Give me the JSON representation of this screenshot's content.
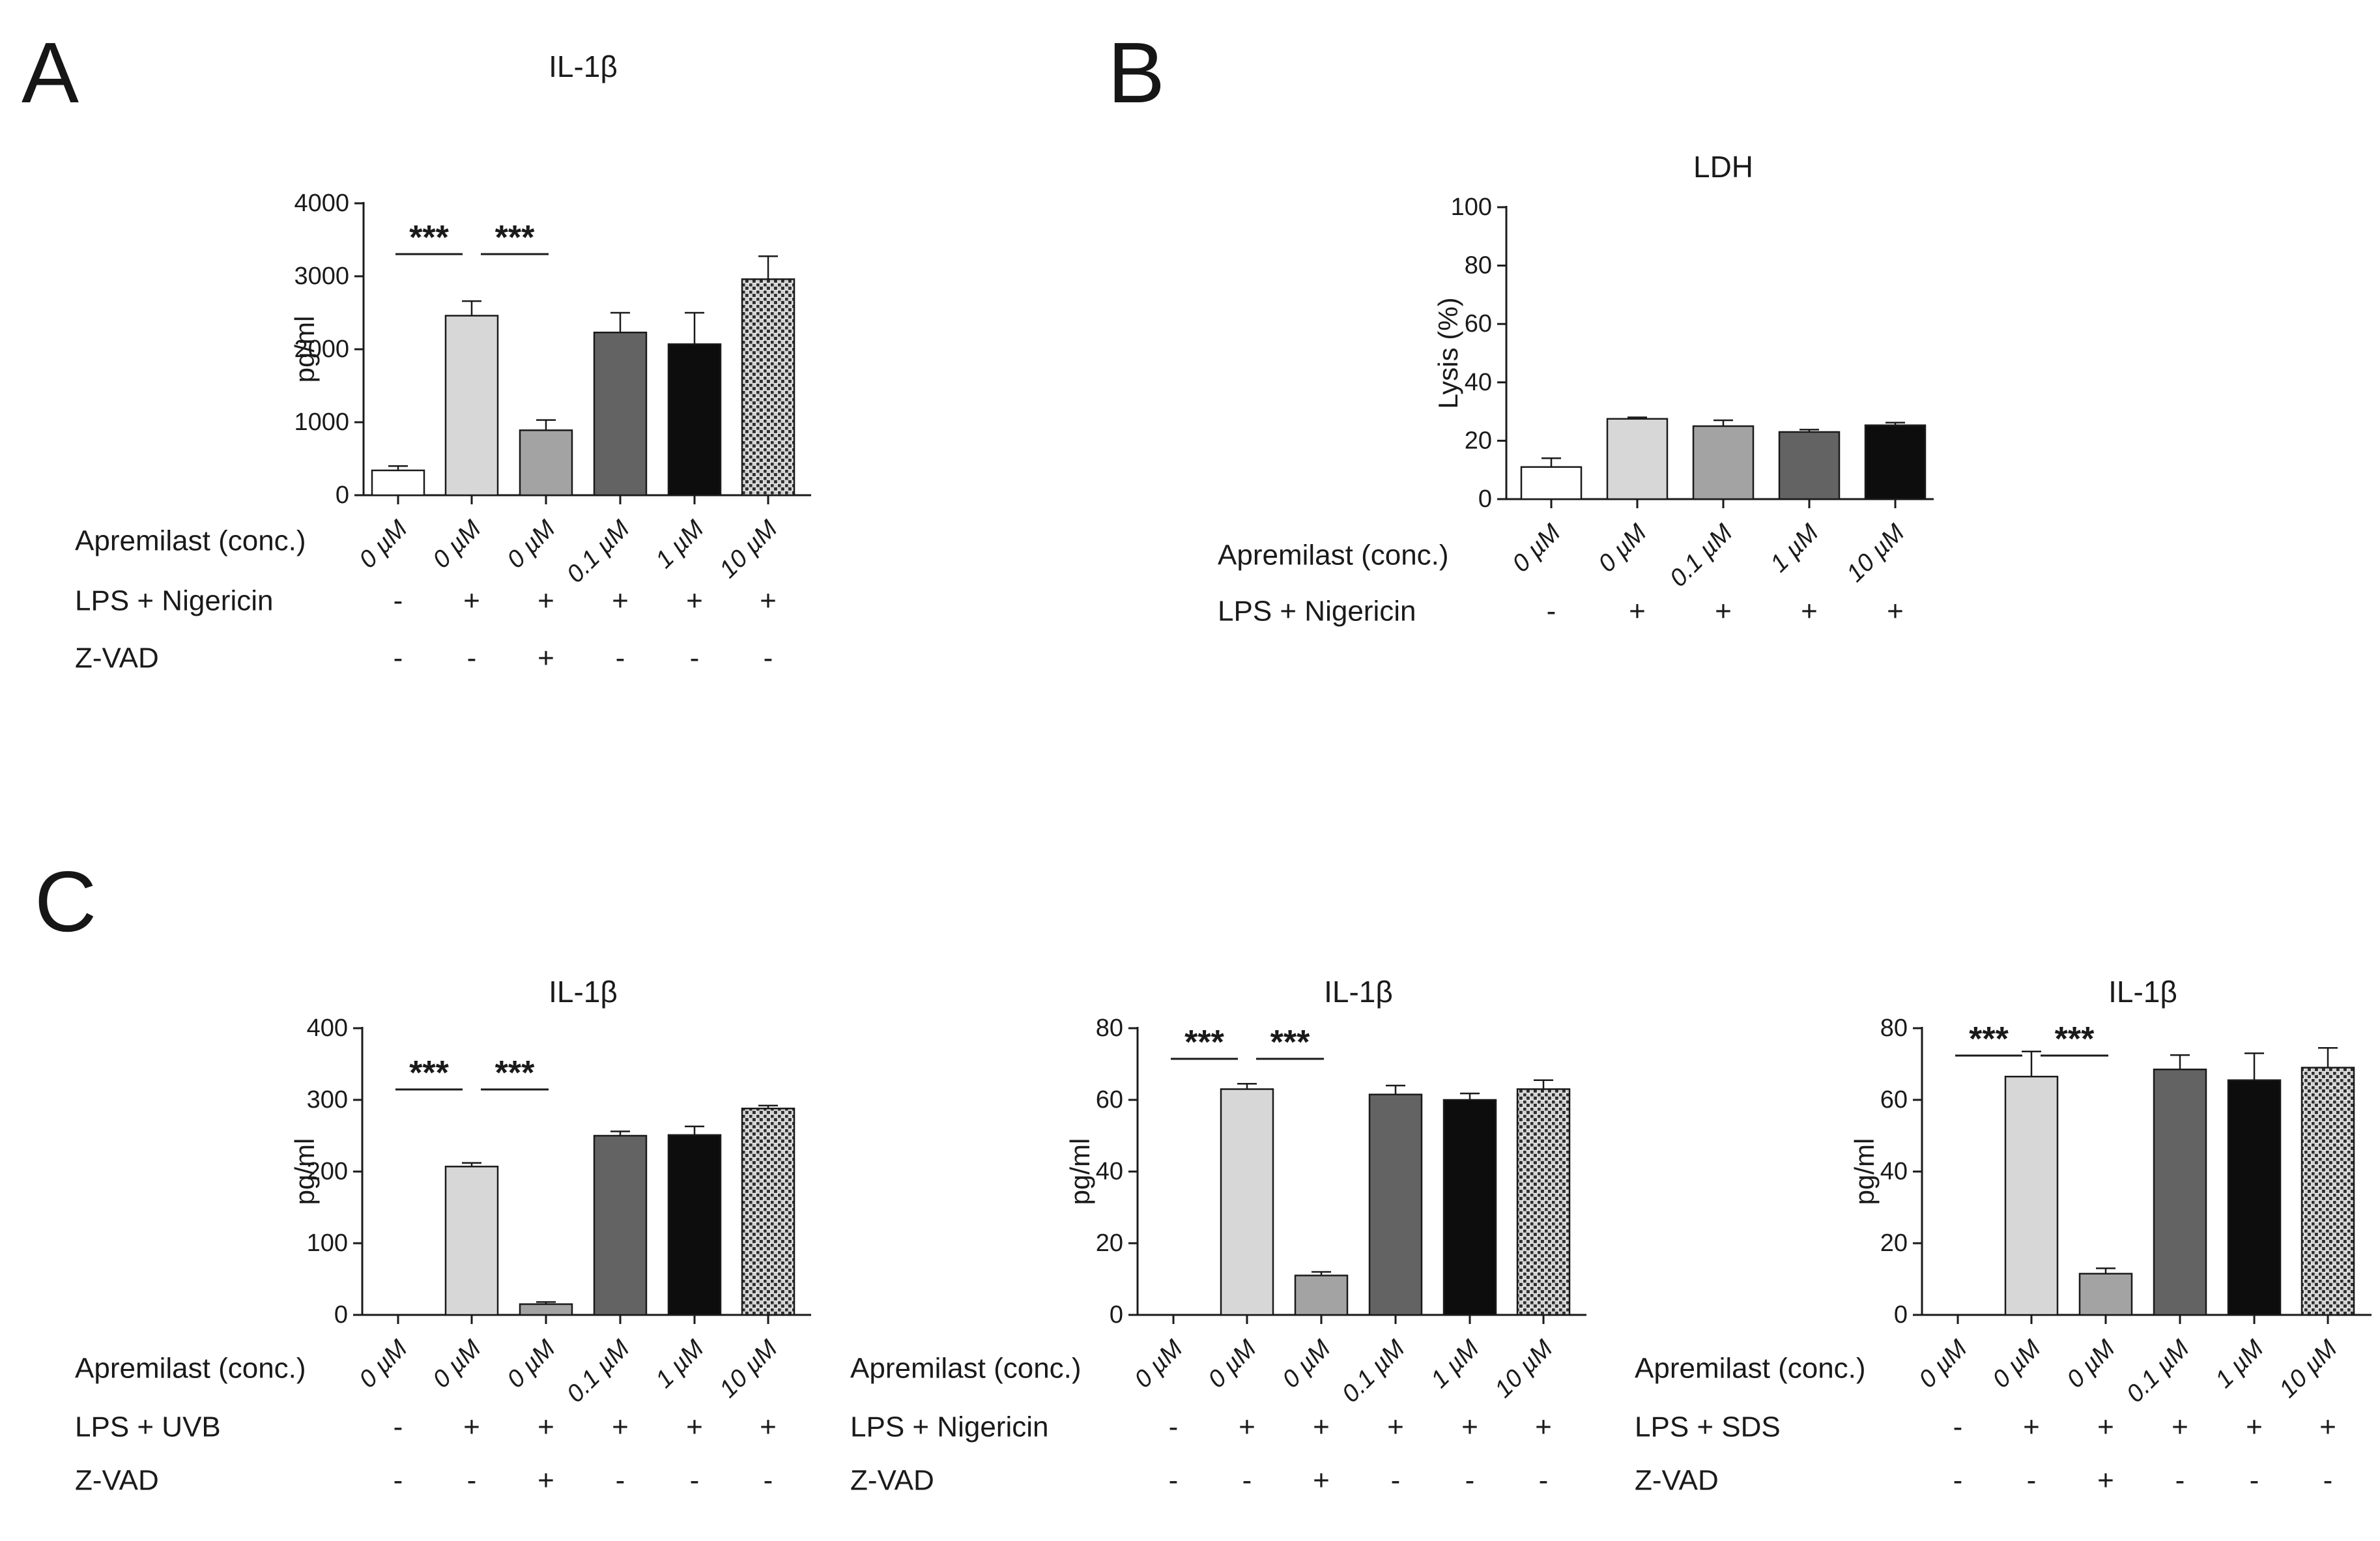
{
  "figure": {
    "background": "#ffffff",
    "ink": "#1a1a1a"
  },
  "panels": [
    {
      "id": "A",
      "letter": "A"
    },
    {
      "id": "B",
      "letter": "B"
    },
    {
      "id": "C",
      "letter": "C"
    }
  ],
  "colors": {
    "white": "#ffffff",
    "lightgray": "#d7d7d7",
    "midgray": "#a3a3a3",
    "darkgray": "#636363",
    "black": "#0d0d0d",
    "checker_dark": "#2e2e2e",
    "checker_light": "#d2d2d2",
    "checker_line": "#f2f2f2"
  },
  "chart_data": [
    {
      "id": "A",
      "panel": "A",
      "type": "bar",
      "title": "IL-1β",
      "ylabel": "pg/ml",
      "ylim": [
        0,
        4000
      ],
      "ytick_step": 1000,
      "grid": false,
      "legend_position": "none",
      "categories": [
        "0 µM",
        "0 µM",
        "0 µM",
        "0.1 µM",
        "1 µM",
        "10 µM"
      ],
      "values": [
        340,
        2460,
        890,
        2230,
        2070,
        2960
      ],
      "errors_plus": [
        60,
        200,
        140,
        270,
        430,
        315
      ],
      "bar_styles": [
        "white",
        "lightgray",
        "midgray",
        "darkgray",
        "black",
        "checker"
      ],
      "significance": [
        {
          "between": [
            0,
            1
          ],
          "label": "***"
        },
        {
          "between": [
            1,
            2
          ],
          "label": "***"
        }
      ],
      "condition_rows": [
        {
          "label": "Apremilast (conc.)",
          "symbols": null
        },
        {
          "label": "LPS + Nigericin",
          "symbols": [
            "-",
            "+",
            "+",
            "+",
            "+",
            "+"
          ]
        },
        {
          "label": "Z-VAD",
          "symbols": [
            "-",
            "-",
            "+",
            "-",
            "-",
            "-"
          ]
        }
      ]
    },
    {
      "id": "B",
      "panel": "B",
      "type": "bar",
      "title": "LDH",
      "ylabel": "Lysis (%)",
      "ylim": [
        0,
        100
      ],
      "ytick_step": 20,
      "grid": false,
      "legend_position": "none",
      "categories": [
        "0 µM",
        "0 µM",
        "0.1 µM",
        "1 µM",
        "10 µM"
      ],
      "values": [
        11,
        27.5,
        25,
        23,
        25.3
      ],
      "errors_plus": [
        3,
        0.5,
        2,
        0.8,
        0.9
      ],
      "bar_styles": [
        "white",
        "lightgray",
        "midgray",
        "darkgray",
        "black"
      ],
      "significance": [],
      "condition_rows": [
        {
          "label": "Apremilast (conc.)",
          "symbols": null
        },
        {
          "label": "LPS + Nigericin",
          "symbols": [
            "-",
            "+",
            "+",
            "+",
            "+"
          ]
        }
      ]
    },
    {
      "id": "C1",
      "panel": "C",
      "type": "bar",
      "title": "IL-1β",
      "ylabel": "pg/ml",
      "ylim": [
        0,
        400
      ],
      "ytick_step": 100,
      "grid": false,
      "legend_position": "none",
      "categories": [
        "0 µM",
        "0 µM",
        "0 µM",
        "0.1 µM",
        "1 µM",
        "10 µM"
      ],
      "values": [
        0,
        207,
        15,
        250,
        251,
        288
      ],
      "errors_plus": [
        0,
        5,
        3,
        6,
        12,
        4
      ],
      "bar_styles": [
        "white",
        "lightgray",
        "midgray",
        "darkgray",
        "black",
        "checker"
      ],
      "significance": [
        {
          "between": [
            0,
            1
          ],
          "label": "***"
        },
        {
          "between": [
            1,
            2
          ],
          "label": "***"
        }
      ],
      "condition_rows": [
        {
          "label": "Apremilast (conc.)",
          "symbols": null
        },
        {
          "label": "LPS + UVB",
          "symbols": [
            "-",
            "+",
            "+",
            "+",
            "+",
            "+"
          ]
        },
        {
          "label": "Z-VAD",
          "symbols": [
            "-",
            "-",
            "+",
            "-",
            "-",
            "-"
          ]
        }
      ]
    },
    {
      "id": "C2",
      "panel": "C",
      "type": "bar",
      "title": "IL-1β",
      "ylabel": "pg/ml",
      "ylim": [
        0,
        80
      ],
      "ytick_step": 20,
      "grid": false,
      "legend_position": "none",
      "categories": [
        "0 µM",
        "0 µM",
        "0 µM",
        "0.1 µM",
        "1 µM",
        "10 µM"
      ],
      "values": [
        0,
        63,
        11,
        61.5,
        60,
        63
      ],
      "errors_plus": [
        0,
        1.5,
        1,
        2.5,
        1.8,
        2.5
      ],
      "bar_styles": [
        "white",
        "lightgray",
        "midgray",
        "darkgray",
        "black",
        "checker"
      ],
      "significance": [
        {
          "between": [
            0,
            1
          ],
          "label": "***"
        },
        {
          "between": [
            1,
            2
          ],
          "label": "***"
        }
      ],
      "condition_rows": [
        {
          "label": "Apremilast (conc.)",
          "symbols": null
        },
        {
          "label": "LPS + Nigericin",
          "symbols": [
            "-",
            "+",
            "+",
            "+",
            "+",
            "+"
          ]
        },
        {
          "label": "Z-VAD",
          "symbols": [
            "-",
            "-",
            "+",
            "-",
            "-",
            "-"
          ]
        }
      ]
    },
    {
      "id": "C3",
      "panel": "C",
      "type": "bar",
      "title": "IL-1β",
      "ylabel": "pg/ml",
      "ylim": [
        0,
        80
      ],
      "ytick_step": 20,
      "grid": false,
      "legend_position": "none",
      "categories": [
        "0 µM",
        "0 µM",
        "0 µM",
        "0.1 µM",
        "1 µM",
        "10 µM"
      ],
      "values": [
        0,
        66.5,
        11.5,
        68.5,
        65.5,
        69
      ],
      "errors_plus": [
        0,
        7,
        1.5,
        4,
        7.5,
        5.5
      ],
      "bar_styles": [
        "white",
        "lightgray",
        "midgray",
        "darkgray",
        "black",
        "checker"
      ],
      "significance": [
        {
          "between": [
            0,
            1
          ],
          "label": "***"
        },
        {
          "between": [
            1,
            2
          ],
          "label": "***"
        }
      ],
      "condition_rows": [
        {
          "label": "Apremilast (conc.)",
          "symbols": null
        },
        {
          "label": "LPS + SDS",
          "symbols": [
            "-",
            "+",
            "+",
            "+",
            "+",
            "+"
          ]
        },
        {
          "label": "Z-VAD",
          "symbols": [
            "-",
            "-",
            "+",
            "-",
            "-",
            "-"
          ]
        }
      ]
    }
  ]
}
